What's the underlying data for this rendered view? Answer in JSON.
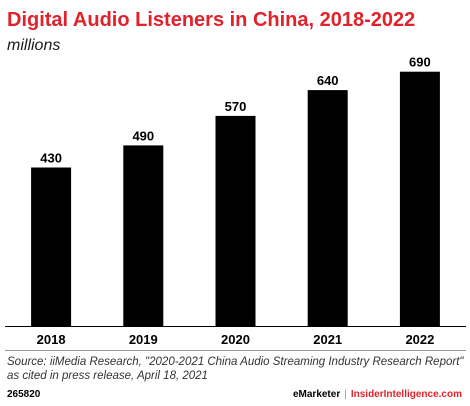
{
  "title": "Digital Audio Listeners in China, 2018-2022",
  "subtitle": "millions",
  "chart_data": {
    "type": "bar",
    "categories": [
      "2018",
      "2019",
      "2020",
      "2021",
      "2022"
    ],
    "values": [
      430,
      490,
      570,
      640,
      690
    ],
    "value_labels": [
      "430",
      "490",
      "570",
      "640",
      "690"
    ],
    "title": "Digital Audio Listeners in China, 2018-2022",
    "subtitle": "millions",
    "xlabel": "",
    "ylabel": "",
    "ylim": [
      0,
      700
    ],
    "grid": false,
    "legend": "none",
    "bar_color": "#000000"
  },
  "source": "Source: iiMedia Research, \"2020-2021 China Audio Streaming Industry Research Report\" as cited in press release, April 18, 2021",
  "footer": {
    "chart_id": "265820",
    "brand": "eMarketer",
    "separator": "|",
    "brand2": "InsiderIntelligence.com"
  },
  "colors": {
    "accent": "#e2222b",
    "bar": "#000000"
  }
}
